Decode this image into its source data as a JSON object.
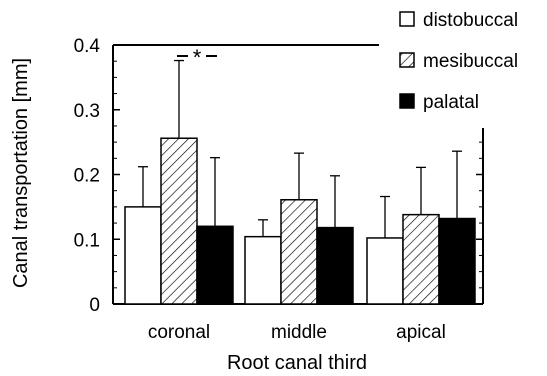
{
  "chart_data": {
    "type": "bar",
    "xlabel": "Root canal third",
    "ylabel": "Canal transportation [mm]",
    "ylim": [
      0,
      0.4
    ],
    "yticks": [
      "0",
      "0.1",
      "0.2",
      "0.3",
      "0.4"
    ],
    "categories": [
      "coronal",
      "middle",
      "apical"
    ],
    "series": [
      {
        "name": "distobuccal",
        "fill": "white",
        "values": [
          0.15,
          0.104,
          0.102
        ],
        "error": [
          0.062,
          0.026,
          0.064
        ]
      },
      {
        "name": "mesibuccal",
        "fill": "hatched",
        "values": [
          0.256,
          0.161,
          0.138
        ],
        "error": [
          0.12,
          0.072,
          0.073
        ]
      },
      {
        "name": "palatal",
        "fill": "black",
        "values": [
          0.12,
          0.118,
          0.132
        ],
        "error": [
          0.106,
          0.08,
          0.104
        ]
      }
    ],
    "annotations": [
      {
        "text": "*",
        "between": [
          "mesibuccal",
          "palatal"
        ],
        "category": "coronal"
      }
    ],
    "legend_position": "top-right",
    "grid": false
  }
}
